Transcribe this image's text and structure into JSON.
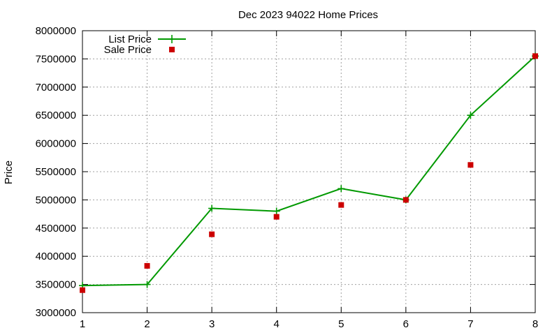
{
  "chart_data": {
    "type": "line",
    "title": "Dec 2023 94022 Home Prices",
    "xlabel": "",
    "ylabel": "Price",
    "x": [
      1,
      2,
      3,
      4,
      5,
      6,
      7,
      8
    ],
    "xlim": [
      1,
      8
    ],
    "ylim": [
      3000000,
      8000000
    ],
    "xticks": [
      "1",
      "2",
      "3",
      "4",
      "5",
      "6",
      "7",
      "8"
    ],
    "yticks": [
      "3000000",
      "3500000",
      "4000000",
      "4500000",
      "5000000",
      "5500000",
      "6000000",
      "6500000",
      "7000000",
      "7500000",
      "8000000"
    ],
    "grid": true,
    "legend_position": "top-left",
    "series": [
      {
        "name": "List Price",
        "style": "line-points",
        "marker": "plus",
        "color": "#009900",
        "values": [
          3480000,
          3500000,
          4850000,
          4800000,
          5200000,
          5000000,
          6500000,
          7550000
        ]
      },
      {
        "name": "Sale Price",
        "style": "points",
        "marker": "square",
        "color": "#cc0000",
        "values": [
          3400000,
          3830000,
          4390000,
          4700000,
          4910000,
          5000000,
          5620000,
          7550000
        ]
      }
    ]
  }
}
